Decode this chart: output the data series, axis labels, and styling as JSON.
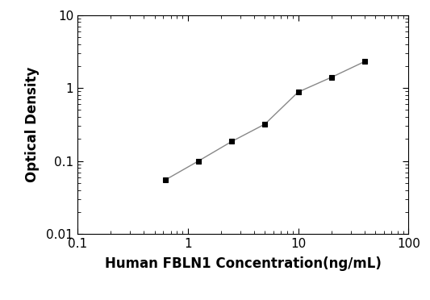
{
  "x": [
    0.625,
    1.25,
    2.5,
    5.0,
    10.0,
    20.0,
    40.0
  ],
  "y": [
    0.055,
    0.1,
    0.185,
    0.32,
    0.88,
    1.4,
    2.3
  ],
  "line_color": "#888888",
  "marker": "s",
  "marker_color": "#000000",
  "marker_size": 5,
  "line_width": 1.0,
  "xlabel": "Human FBLN1 Concentration(ng/mL)",
  "ylabel": "Optical Density",
  "xlim": [
    0.1,
    100
  ],
  "ylim": [
    0.01,
    10
  ],
  "xticks": [
    0.1,
    1,
    10,
    100
  ],
  "yticks": [
    0.01,
    0.1,
    1,
    10
  ],
  "xlabel_fontsize": 12,
  "ylabel_fontsize": 12,
  "tick_fontsize": 11,
  "background_color": "#ffffff"
}
